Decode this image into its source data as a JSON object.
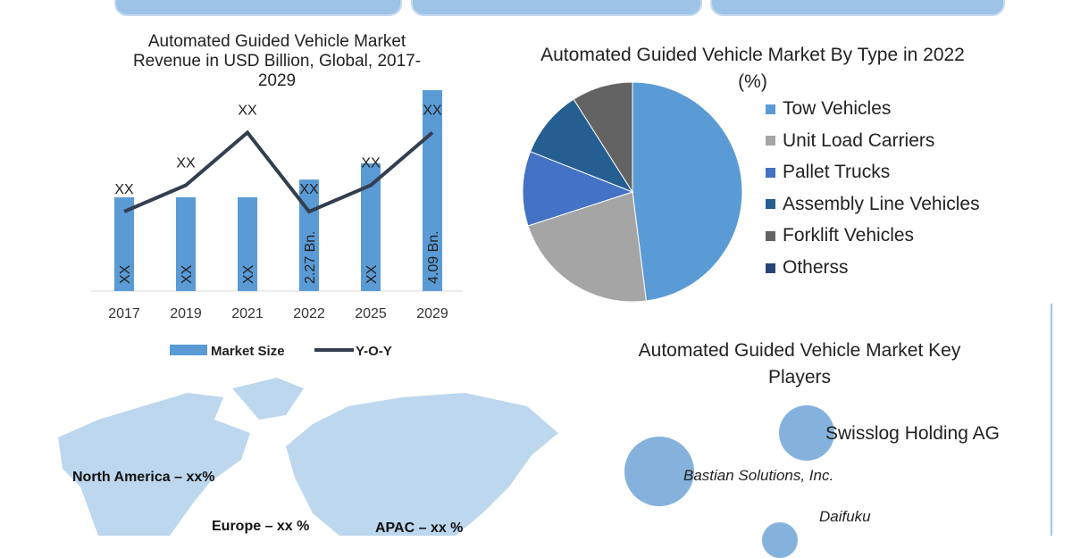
{
  "chart_data": [
    {
      "type": "bar",
      "title": "Automated Guided Vehicle Market Revenue in USD Billion, Global, 2017-2029",
      "categories": [
        "2017",
        "2019",
        "2021",
        "2022",
        "2025",
        "2029"
      ],
      "series": [
        {
          "name": "Market Size",
          "values": [
            1.3,
            1.3,
            1.65,
            2.27,
            2.6,
            4.09
          ],
          "labels": [
            "XX",
            "XX",
            "XX",
            "2.27 Bn.",
            "XX",
            "4.09 Bn."
          ],
          "color": "#5b9bd5"
        },
        {
          "name": "Y-O-Y",
          "type": "line",
          "values": [
            2,
            3,
            5,
            2,
            3,
            5
          ],
          "labels": [
            "XX",
            "XX",
            "XX",
            "XX",
            "XX",
            "XX"
          ],
          "color": "#333f50"
        }
      ],
      "legend": "bottom"
    },
    {
      "type": "pie",
      "title": "Automated Guided Vehicle Market  By Type in 2022 (%)",
      "labels": [
        "Tow Vehicles",
        "Unit Load Carriers",
        "Pallet Trucks",
        "Assembly Line Vehicles",
        "Forklift Vehicles",
        "Otherss"
      ],
      "values": [
        48,
        22,
        11,
        10,
        9,
        0
      ],
      "colors": [
        "#5b9bd5",
        "#a5a5a5",
        "#4472c4",
        "#255e91",
        "#636363",
        "#264478"
      ],
      "legend": "right"
    }
  ],
  "regions": [
    "North America – xx%",
    "Europe – xx %",
    "APAC – xx %"
  ],
  "players": {
    "title": "Automated Guided Vehicle Market Key Players",
    "names": [
      "Swisslog Holding AG",
      "Bastian Solutions, Inc.",
      "Daifuku"
    ]
  }
}
